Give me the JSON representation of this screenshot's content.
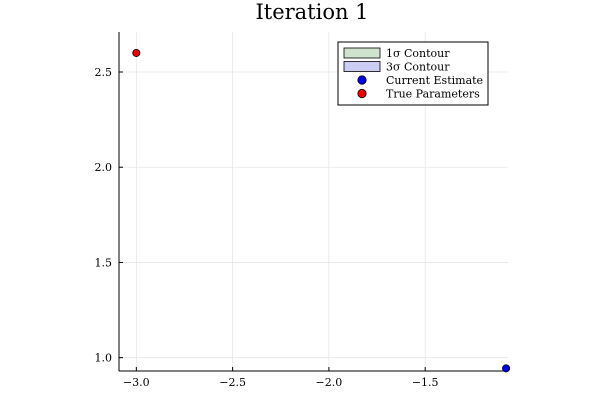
{
  "chart_data": {
    "type": "scatter",
    "title": "Iteration 1",
    "xlabel": "",
    "ylabel": "",
    "xlim": [
      -3.09,
      -1.07
    ],
    "ylim": [
      0.93,
      2.71
    ],
    "xticks": [
      -3.0,
      -2.5,
      -2.0,
      -1.5
    ],
    "xtick_labels": [
      "−3.0",
      "−2.5",
      "−2.0",
      "−1.5"
    ],
    "yticks": [
      1.0,
      1.5,
      2.0,
      2.5
    ],
    "ytick_labels": [
      "1.0",
      "1.5",
      "2.0",
      "2.5"
    ],
    "grid": true,
    "legend_position": "top-right",
    "legend": [
      {
        "label": "1σ Contour",
        "kind": "patch",
        "fill": "#cfe3cf",
        "stroke": "#000000"
      },
      {
        "label": "3σ Contour",
        "kind": "patch",
        "fill": "#cccdf5",
        "stroke": "#000000"
      },
      {
        "label": "Current Estimate",
        "kind": "marker",
        "color": "#0000ee"
      },
      {
        "label": "True Parameters",
        "kind": "marker",
        "color": "#ee0000"
      }
    ],
    "series": [
      {
        "name": "1σ Contour",
        "type": "area",
        "color": "#cfe3cf",
        "points": []
      },
      {
        "name": "3σ Contour",
        "type": "area",
        "color": "#cccdf5",
        "points": []
      },
      {
        "name": "Current Estimate",
        "type": "scatter",
        "color": "#0000ee",
        "points": [
          [
            -1.08,
            0.944
          ]
        ]
      },
      {
        "name": "True Parameters",
        "type": "scatter",
        "color": "#ee0000",
        "points": [
          [
            -3.0,
            2.6
          ]
        ]
      }
    ]
  }
}
